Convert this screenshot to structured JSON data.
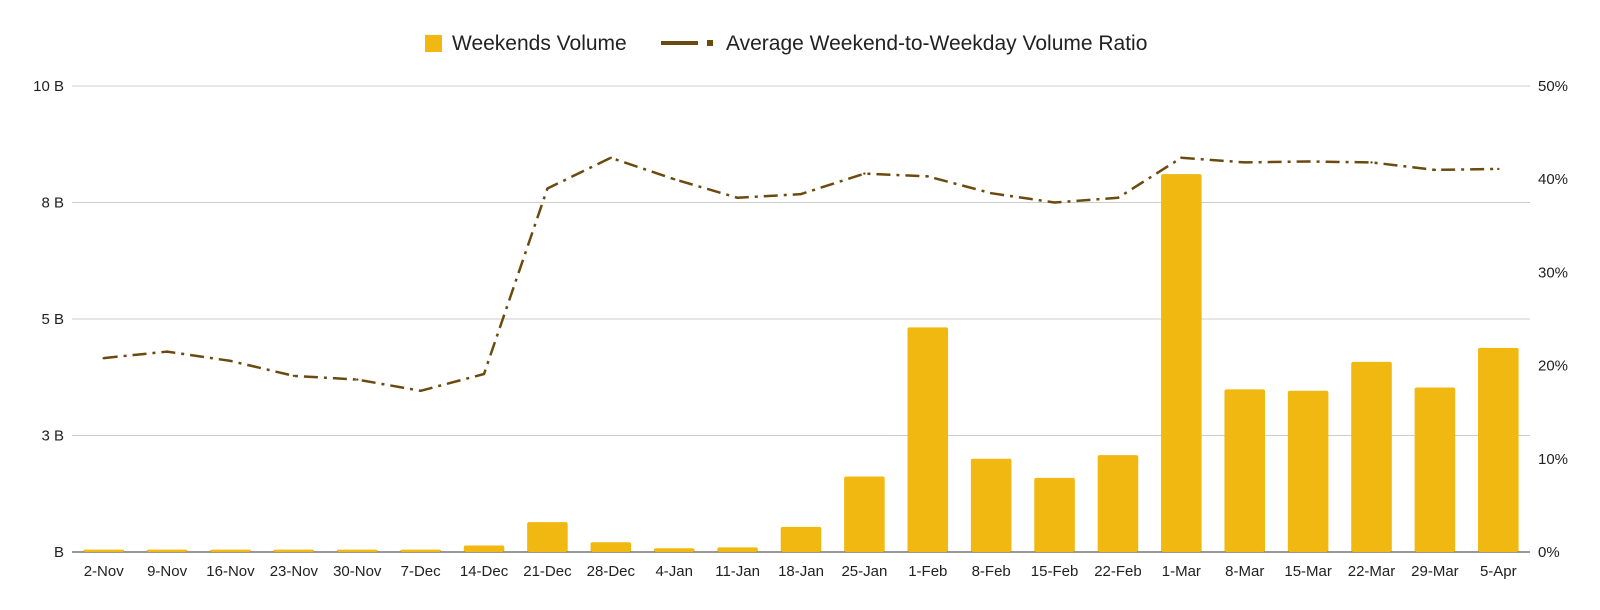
{
  "chart_data": {
    "type": "bar",
    "title": "",
    "xlabel": "",
    "ylabel": "",
    "ylabel_right": "",
    "legend_position": "top",
    "grid": true,
    "categories": [
      "2-Nov",
      "9-Nov",
      "16-Nov",
      "23-Nov",
      "30-Nov",
      "7-Dec",
      "14-Dec",
      "21-Dec",
      "28-Dec",
      "4-Jan",
      "11-Jan",
      "18-Jan",
      "25-Jan",
      "1-Feb",
      "8-Feb",
      "15-Feb",
      "22-Feb",
      "1-Mar",
      "8-Mar",
      "15-Mar",
      "22-Mar",
      "29-Mar",
      "5-Apr"
    ],
    "ylim": [
      0,
      10
    ],
    "ylim_right": [
      0,
      50
    ],
    "y_ticks": [
      {
        "value": 0,
        "label": "B"
      },
      {
        "value": 2.5,
        "label": "3 B"
      },
      {
        "value": 5,
        "label": "5 B"
      },
      {
        "value": 7.5,
        "label": "8 B"
      },
      {
        "value": 10,
        "label": "10 B"
      }
    ],
    "y_right_ticks": [
      {
        "value": 0,
        "label": "0%"
      },
      {
        "value": 10,
        "label": "10%"
      },
      {
        "value": 20,
        "label": "20%"
      },
      {
        "value": 30,
        "label": "30%"
      },
      {
        "value": 40,
        "label": "40%"
      },
      {
        "value": 50,
        "label": "50%"
      }
    ],
    "series": [
      {
        "name": "Weekends Volume",
        "type": "bar",
        "axis": "left",
        "color": "#F1B812",
        "values": [
          0.05,
          0.05,
          0.05,
          0.05,
          0.05,
          0.05,
          0.14,
          0.64,
          0.21,
          0.08,
          0.1,
          0.54,
          1.62,
          4.82,
          2.0,
          1.59,
          2.08,
          8.11,
          3.49,
          3.46,
          4.08,
          3.53,
          4.38
        ]
      },
      {
        "name": "Average Weekend-to-Weekday Volume Ratio",
        "type": "line",
        "axis": "right",
        "style": "dash-dot",
        "color": "#6B4A10",
        "values": [
          20.8,
          21.5,
          20.5,
          18.9,
          18.5,
          17.3,
          19.1,
          39.0,
          42.3,
          40.0,
          38.0,
          38.4,
          40.6,
          40.3,
          38.5,
          37.5,
          38.0,
          42.3,
          41.8,
          41.9,
          41.8,
          41.0,
          41.1
        ]
      }
    ]
  }
}
